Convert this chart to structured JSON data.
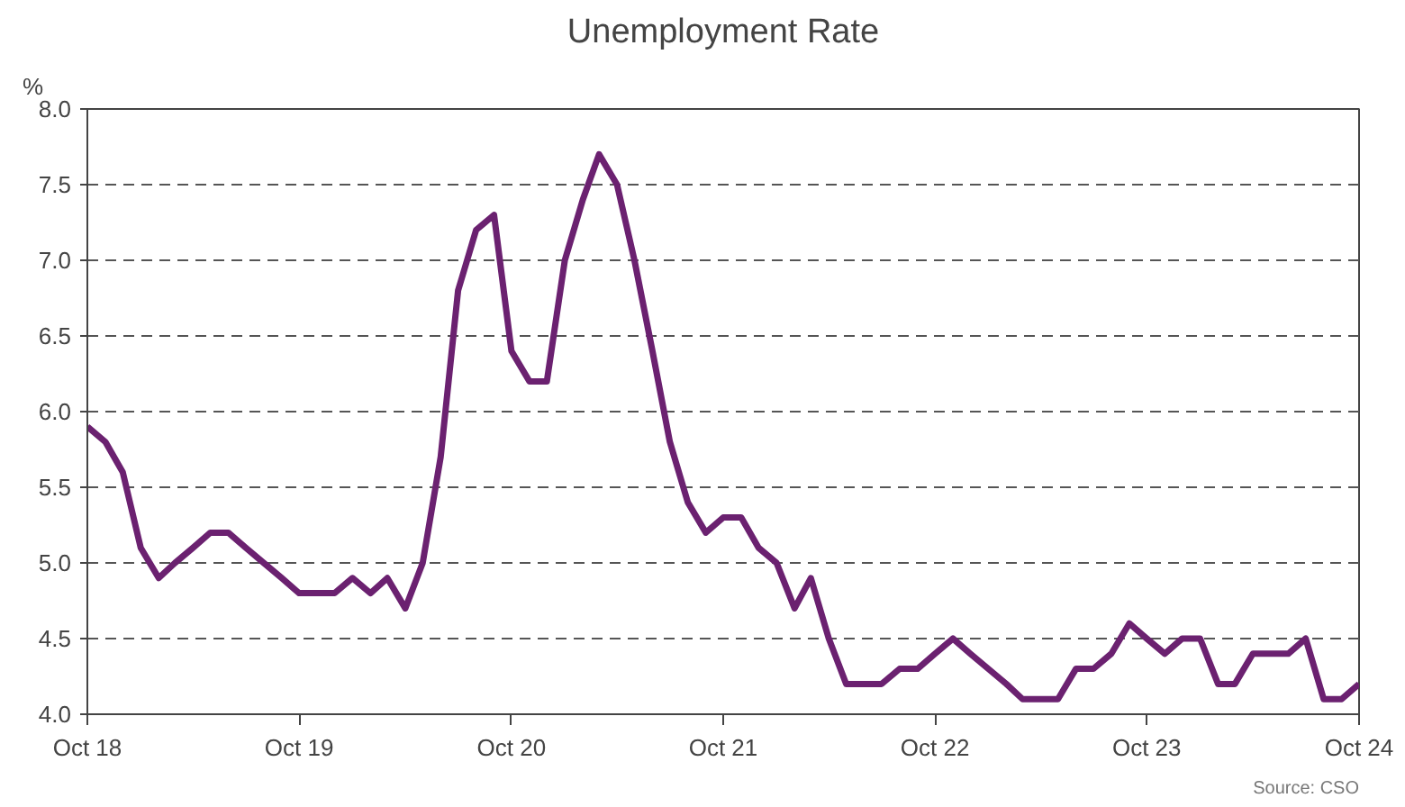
{
  "chart_data": {
    "type": "line",
    "title": "Unemployment Rate",
    "ylabel": "%",
    "x": [
      "2018-10",
      "2018-11",
      "2018-12",
      "2019-01",
      "2019-02",
      "2019-03",
      "2019-04",
      "2019-05",
      "2019-06",
      "2019-07",
      "2019-08",
      "2019-09",
      "2019-10",
      "2019-11",
      "2019-12",
      "2020-01",
      "2020-02",
      "2020-03",
      "2020-04",
      "2020-05",
      "2020-06",
      "2020-07",
      "2020-08",
      "2020-09",
      "2020-10",
      "2020-11",
      "2020-12",
      "2021-01",
      "2021-02",
      "2021-03",
      "2021-04",
      "2021-05",
      "2021-06",
      "2021-07",
      "2021-08",
      "2021-09",
      "2021-10",
      "2021-11",
      "2021-12",
      "2022-01",
      "2022-02",
      "2022-03",
      "2022-04",
      "2022-05",
      "2022-06",
      "2022-07",
      "2022-08",
      "2022-09",
      "2022-10",
      "2022-11",
      "2022-12",
      "2023-01",
      "2023-02",
      "2023-03",
      "2023-04",
      "2023-05",
      "2023-06",
      "2023-07",
      "2023-08",
      "2023-09",
      "2023-10",
      "2023-11",
      "2023-12",
      "2024-01",
      "2024-02",
      "2024-03",
      "2024-04",
      "2024-05",
      "2024-06",
      "2024-07",
      "2024-08",
      "2024-09",
      "2024-10"
    ],
    "series": [
      {
        "color": "#6b2170",
        "values": [
          5.9,
          5.8,
          5.6,
          5.1,
          4.9,
          5.0,
          5.1,
          5.2,
          5.2,
          5.1,
          5.0,
          4.9,
          4.8,
          4.8,
          4.8,
          4.9,
          4.8,
          4.9,
          4.7,
          5.0,
          5.7,
          6.8,
          7.2,
          7.3,
          6.4,
          6.2,
          6.2,
          7.0,
          7.4,
          7.7,
          7.5,
          7.0,
          6.4,
          5.8,
          5.4,
          5.2,
          5.3,
          5.3,
          5.1,
          5.0,
          4.7,
          4.9,
          4.5,
          4.2,
          4.2,
          4.2,
          4.3,
          4.3,
          4.4,
          4.5,
          4.4,
          4.3,
          4.2,
          4.1,
          4.1,
          4.1,
          4.3,
          4.3,
          4.4,
          4.6,
          4.5,
          4.4,
          4.5,
          4.5,
          4.2,
          4.2,
          4.4,
          4.4,
          4.4,
          4.5,
          4.1,
          4.1,
          4.2
        ]
      }
    ],
    "xlim": [
      "2018-10",
      "2024-10"
    ],
    "xticks": [
      {
        "value": "2018-10",
        "label": "Oct 18"
      },
      {
        "value": "2019-10",
        "label": "Oct 19"
      },
      {
        "value": "2020-10",
        "label": "Oct 20"
      },
      {
        "value": "2021-10",
        "label": "Oct 21"
      },
      {
        "value": "2022-10",
        "label": "Oct 22"
      },
      {
        "value": "2023-10",
        "label": "Oct 23"
      },
      {
        "value": "2024-10",
        "label": "Oct 24"
      }
    ],
    "ylim": [
      4.0,
      8.0
    ],
    "yticks": [
      {
        "value": 4.0,
        "label": "4.0"
      },
      {
        "value": 4.5,
        "label": "4.5"
      },
      {
        "value": 5.0,
        "label": "5.0"
      },
      {
        "value": 5.5,
        "label": "5.5"
      },
      {
        "value": 6.0,
        "label": "6.0"
      },
      {
        "value": 6.5,
        "label": "6.5"
      },
      {
        "value": 7.0,
        "label": "7.0"
      },
      {
        "value": 7.5,
        "label": "7.5"
      },
      {
        "value": 8.0,
        "label": "8.0"
      }
    ],
    "grid": "y",
    "marker": "none",
    "line_style": "solid",
    "annotations": [
      "Source: CSO"
    ]
  }
}
